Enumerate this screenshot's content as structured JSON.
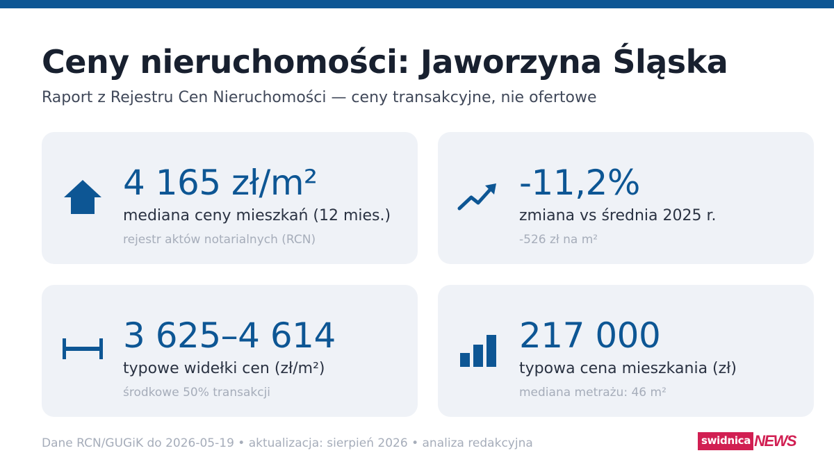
{
  "header": {
    "title": "Ceny nieruchomości: Jaworzyna Śląska",
    "subtitle": "Raport z Rejestru Cen Nieruchomości — ceny transakcyjne, nie ofertowe"
  },
  "cards": [
    {
      "icon": "house-icon",
      "value": "4 165 zł/m²",
      "label": "mediana ceny mieszkań (12 mies.)",
      "note": "rejestr aktów notarialnych (RCN)"
    },
    {
      "icon": "trend-up-icon",
      "value": "-11,2%",
      "label": "zmiana vs średnia 2025 r.",
      "note": "-526 zł na m²"
    },
    {
      "icon": "range-icon",
      "value": "3 625–4 614",
      "label": "typowe widełki cen (zł/m²)",
      "note": "środkowe 50% transakcji"
    },
    {
      "icon": "bar-chart-icon",
      "value": "217 000",
      "label": "typowa cena mieszkania (zł)",
      "note": "mediana metrażu: 46 m²"
    }
  ],
  "footer": {
    "text": "Dane RCN/GUGiK do 2026-05-19 • aktualizacja: sierpień 2026 • analiza redakcyjna"
  },
  "logo": {
    "part1": "swidnica",
    "part2": "NEWS"
  },
  "colors": {
    "accent": "#0d5694",
    "card_bg": "#eff2f7",
    "logo_red": "#d11f52"
  }
}
